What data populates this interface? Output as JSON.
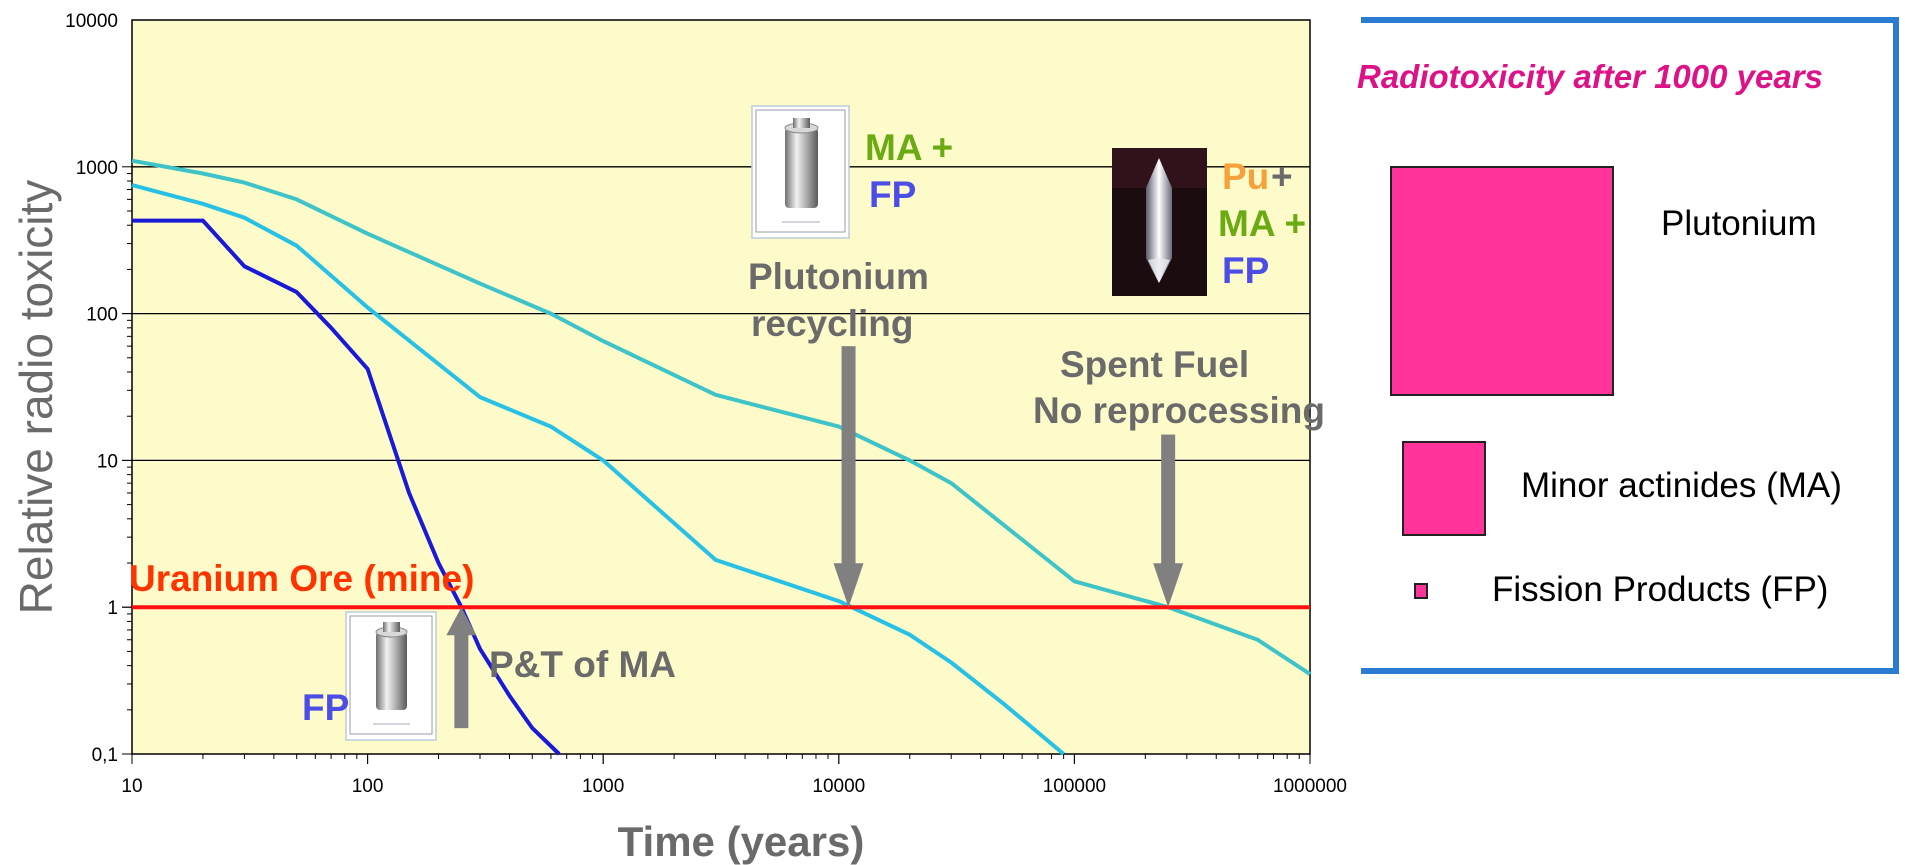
{
  "colors": {
    "plot_bg": "#fdfbc9",
    "grid": "#000000",
    "teal": "#3ec4c8",
    "cyan": "#28c1e6",
    "blue": "#1a1ad6",
    "red": "#ff1111",
    "uranium_text": "#ff3300",
    "annot_grey": "#6a6a6a",
    "arrow_grey": "#808080",
    "ma_green": "#6aaa12",
    "fp_blue": "#4c4ce6",
    "pu_orange": "#f6a13c",
    "legend_title": "#dd1188",
    "legend_square": "#ff3399",
    "legend_border": "#2b7bd3"
  },
  "chart_data": {
    "type": "line",
    "x_scale": "log",
    "y_scale": "log",
    "xlim": [
      10,
      1000000
    ],
    "ylim": [
      0.1,
      10000
    ],
    "x_ticks": [
      "10",
      "100",
      "1000",
      "10000",
      "100000",
      "1000000"
    ],
    "y_ticks": [
      "0,1",
      "1",
      "10",
      "100",
      "1000",
      "10000"
    ],
    "xlabel": "Time (years)",
    "ylabel": "Relative radio toxicity",
    "grid_y": true,
    "series": [
      {
        "color_key": "teal",
        "x": [
          10,
          20,
          30,
          50,
          100,
          300,
          600,
          1000,
          3000,
          10000,
          20000,
          30000,
          100000,
          250000,
          600000,
          1000000
        ],
        "values": [
          1100,
          900,
          780,
          600,
          350,
          160,
          100,
          65,
          28,
          17,
          10,
          7,
          1.5,
          1.0,
          0.6,
          0.35
        ]
      },
      {
        "color_key": "cyan",
        "x": [
          10,
          20,
          30,
          50,
          100,
          300,
          600,
          1000,
          3000,
          10000,
          20000,
          30000,
          50000,
          90000
        ],
        "values": [
          750,
          560,
          450,
          290,
          110,
          27,
          17,
          10,
          2.1,
          1.1,
          0.65,
          0.42,
          0.22,
          0.1
        ]
      },
      {
        "color_key": "blue",
        "x": [
          10,
          20,
          30,
          50,
          70,
          100,
          150,
          200,
          250,
          300,
          400,
          500,
          650
        ],
        "values": [
          430,
          430,
          210,
          140,
          80,
          42,
          6,
          2.0,
          1.0,
          0.52,
          0.25,
          0.15,
          0.1
        ]
      },
      {
        "color_key": "red",
        "x": [
          10,
          1000000
        ],
        "values": [
          1,
          1
        ]
      }
    ],
    "annotations": {
      "uranium": "Uranium Ore (mine)",
      "fp_label": "FP",
      "pt_ma": "P&T of MA",
      "pu_recycling_1": "Plutonium",
      "pu_recycling_2": "recycling",
      "spent_fuel_1": "Spent Fuel",
      "spent_fuel_2": "No reprocessing",
      "ma_plus": "MA +",
      "fp": "FP",
      "pu": "Pu",
      "plus": "+",
      "ma_plus_2": "MA +",
      "fp_2": "FP"
    },
    "arrows": [
      {
        "x": 250,
        "from": 0.15,
        "to": 1.0,
        "direction": "up"
      },
      {
        "x": 11000,
        "from": 60,
        "to": 1.0,
        "direction": "down"
      },
      {
        "x": 250000,
        "from": 15,
        "to": 1.0,
        "direction": "down"
      }
    ]
  },
  "legend": {
    "title": "Radiotoxicity after 1000 years",
    "items": [
      {
        "label": "Plutonium"
      },
      {
        "label": "Minor actinides (MA)"
      },
      {
        "label": "Fission Products (FP)"
      }
    ]
  }
}
